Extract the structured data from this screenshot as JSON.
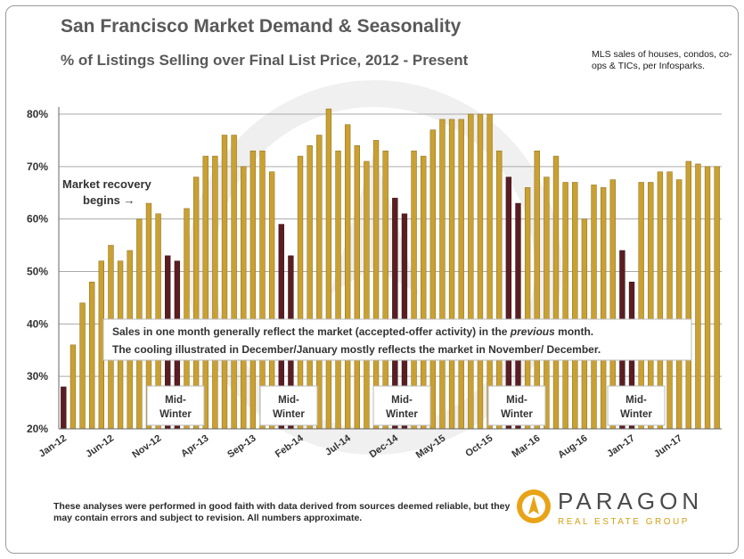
{
  "header": {
    "title": "San Francisco Market Demand & Seasonality",
    "subtitle": "% of Listings Selling over Final List Price, 2012 - Present",
    "source": "MLS sales of houses, condos, co-ops & TICs, per Infosparks."
  },
  "footer": {
    "disclaimer": "These analyses were performed in good faith with data derived from sources deemed reliable, but they may contain errors and subject to revision. All numbers approximate.",
    "logo_name": "PARAGON",
    "logo_sub": "REAL ESTATE GROUP"
  },
  "colors": {
    "bar": "#c9a032",
    "bar_winter": "#5a1e22",
    "grid": "#aaaaaa"
  },
  "chart_data": {
    "type": "bar",
    "ylim": [
      20,
      80
    ],
    "yticks": [
      "20%",
      "30%",
      "40%",
      "50%",
      "60%",
      "70%",
      "80%"
    ],
    "xtick_labels": [
      "Jan-12",
      "Jun-12",
      "Nov-12",
      "Apr-13",
      "Sep-13",
      "Feb-14",
      "Jul-14",
      "Dec-14",
      "May-15",
      "Oct-15",
      "Mar-16",
      "Aug-16",
      "Jan-17",
      "Jun-17"
    ],
    "categories": [
      "Jan-12",
      "Feb-12",
      "Mar-12",
      "Apr-12",
      "May-12",
      "Jun-12",
      "Jul-12",
      "Aug-12",
      "Sep-12",
      "Oct-12",
      "Nov-12",
      "Dec-12",
      "Jan-13",
      "Feb-13",
      "Mar-13",
      "Apr-13",
      "May-13",
      "Jun-13",
      "Jul-13",
      "Aug-13",
      "Sep-13",
      "Oct-13",
      "Nov-13",
      "Dec-13",
      "Jan-14",
      "Feb-14",
      "Mar-14",
      "Apr-14",
      "May-14",
      "Jun-14",
      "Jul-14",
      "Aug-14",
      "Sep-14",
      "Oct-14",
      "Nov-14",
      "Dec-14",
      "Jan-15",
      "Feb-15",
      "Mar-15",
      "Apr-15",
      "May-15",
      "Jun-15",
      "Jul-15",
      "Aug-15",
      "Sep-15",
      "Oct-15",
      "Nov-15",
      "Dec-15",
      "Jan-16",
      "Feb-16",
      "Mar-16",
      "Apr-16",
      "May-16",
      "Jun-16",
      "Jul-16",
      "Aug-16",
      "Sep-16",
      "Oct-16",
      "Nov-16",
      "Dec-16",
      "Jan-17",
      "Feb-17",
      "Mar-17",
      "Apr-17",
      "May-17",
      "Jun-17",
      "Jul-17",
      "Aug-17",
      "Sep-17",
      "Oct-17"
    ],
    "values": [
      28,
      36,
      44,
      48,
      52,
      55,
      52,
      54,
      60,
      63,
      61,
      53,
      52,
      62,
      68,
      72,
      72,
      76,
      76,
      70,
      73,
      73,
      69,
      59,
      53,
      72,
      74,
      76,
      81,
      73,
      78,
      74,
      71,
      75,
      73,
      64,
      61,
      73,
      72,
      77,
      79,
      79,
      79,
      80,
      80,
      80,
      73,
      68,
      63,
      66,
      73,
      68,
      72,
      67,
      67,
      60,
      66.5,
      66,
      67.5,
      54,
      48,
      67,
      67,
      69,
      69,
      67.5,
      71,
      70.5,
      70,
      70
    ],
    "winter_months": [
      "Jan-12",
      "Dec-12",
      "Jan-13",
      "Dec-13",
      "Jan-14",
      "Dec-14",
      "Jan-15",
      "Dec-15",
      "Jan-16",
      "Dec-16",
      "Jan-17"
    ],
    "annotations": {
      "recovery_line1": "Market recovery",
      "recovery_line2": "begins →",
      "note_line1_pre": "Sales in one month generally reflect the market (accepted-offer activity) in the ",
      "note_line1_em": "previous",
      "note_line1_post": " month.",
      "note_line2": "The cooling illustrated in December/January mostly reflects the market in November/ December.",
      "mid_winter_line1": "Mid-",
      "mid_winter_line2": "Winter"
    }
  }
}
